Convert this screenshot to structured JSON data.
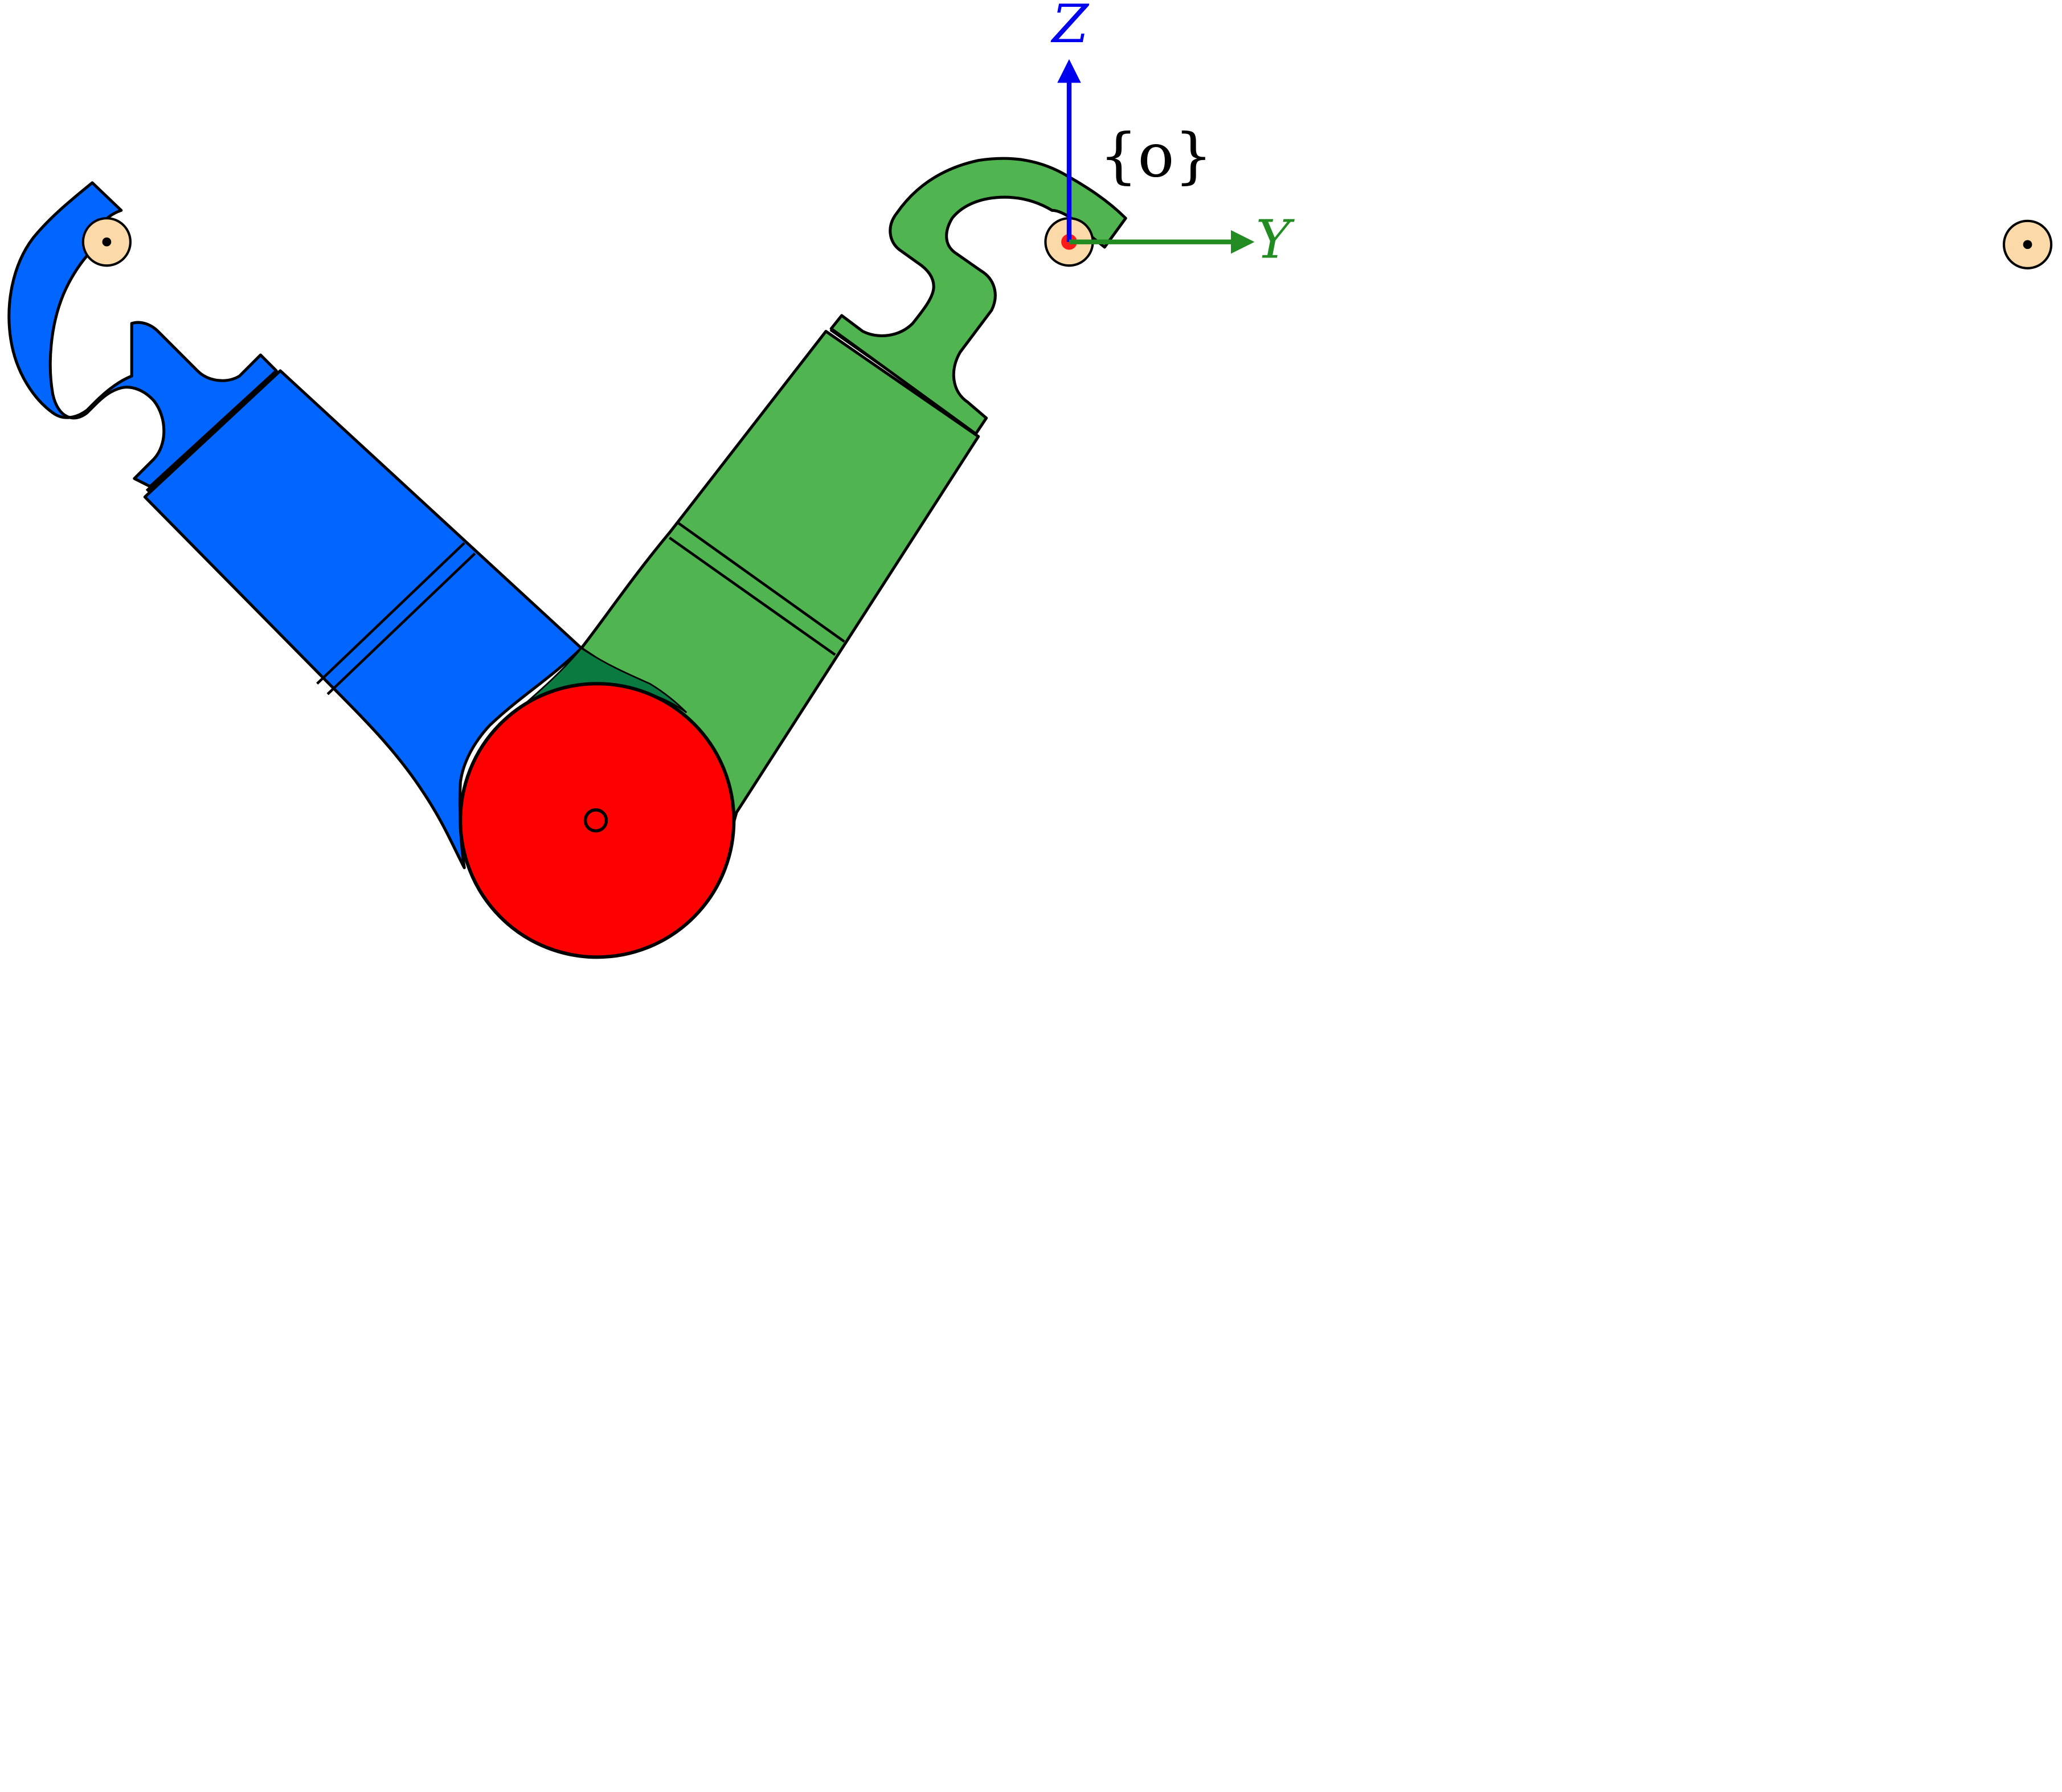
{
  "diagram": {
    "axes": {
      "z_label": "Z",
      "y_label": "Y",
      "frame_label": "{o}"
    },
    "colors": {
      "left_arm": "#0066ff",
      "right_arm": "#50b450",
      "overlap": "#0a7a40",
      "joint": "#ff0000",
      "origin_dot": "#ff1a1a",
      "pivot_fill": "#fcd9a8",
      "z_axis": "#0000ee",
      "y_axis": "#228b22",
      "outline": "#000000"
    },
    "elements": {
      "left_arm": "blue-arm",
      "right_arm": "green-arm",
      "joint": "red-joint",
      "pivots": [
        "left-pivot",
        "origin-pivot",
        "right-pivot"
      ]
    }
  }
}
